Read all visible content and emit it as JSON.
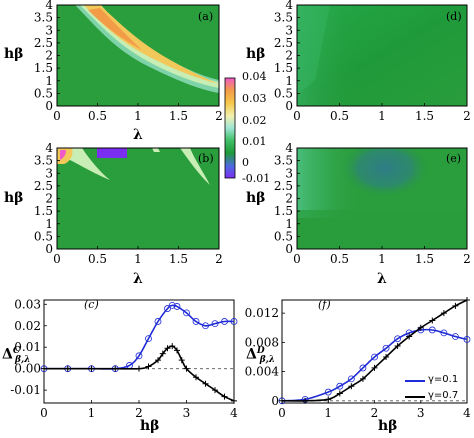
{
  "colorbar": {
    "ticks": [
      "0.04",
      "0.03",
      "0.02",
      "0.01",
      "0",
      "-0.01"
    ],
    "values": [
      0.04,
      0.03,
      0.02,
      0.01,
      0,
      -0.01
    ],
    "range": [
      -0.015,
      0.045
    ]
  },
  "colors": {
    "heatmap_green": "#2a9d3c",
    "line_blue": "#1f2bd6",
    "line_black": "#000000"
  },
  "chart_data": [
    {
      "type": "heatmap",
      "panel": "(a)",
      "xlabel": "λ",
      "ylabel": "hβ",
      "xlim": [
        0,
        2
      ],
      "ylim": [
        0,
        4
      ],
      "xticks": [
        "0",
        "0.5",
        "1",
        "1.5",
        "2"
      ],
      "yticks": [
        "0",
        "0.5",
        "1",
        "1.5",
        "2",
        "2.5",
        "3",
        "3.5",
        "4"
      ]
    },
    {
      "type": "heatmap",
      "panel": "(d)",
      "xlabel": "",
      "ylabel": "hβ",
      "xlim": [
        0,
        2
      ],
      "ylim": [
        0,
        4
      ],
      "xticks": [
        "0",
        "0.5",
        "1",
        "1.5",
        "2"
      ],
      "yticks": [
        "0",
        "0.5",
        "1",
        "1.5",
        "2",
        "2.5",
        "3",
        "3.5",
        "4"
      ]
    },
    {
      "type": "heatmap",
      "panel": "(b)",
      "xlabel": "λ",
      "ylabel": "hβ",
      "xlim": [
        0,
        2
      ],
      "ylim": [
        0,
        4
      ],
      "xticks": [
        "0",
        "0.5",
        "1",
        "1.5",
        "2"
      ],
      "yticks": [
        "0",
        "0.5",
        "1",
        "1.5",
        "2",
        "2.5",
        "3",
        "3.5",
        "4"
      ]
    },
    {
      "type": "heatmap",
      "panel": "(e)",
      "xlabel": "λ",
      "ylabel": "hβ",
      "xlim": [
        0,
        2
      ],
      "ylim": [
        0,
        4
      ],
      "xticks": [
        "0",
        "0.5",
        "1",
        "1.5",
        "2"
      ],
      "yticks": [
        "0",
        "0.5",
        "1",
        "1.5",
        "2",
        "2.5",
        "3",
        "3.5",
        "4"
      ]
    },
    {
      "type": "line",
      "panel": "(c)",
      "xlabel": "hβ",
      "ylabel": "Δ^C_{β,λ}",
      "xlim": [
        0,
        4
      ],
      "ylim": [
        -0.016,
        0.032
      ],
      "xticks": [
        "0",
        "1",
        "2",
        "3",
        "4"
      ],
      "yticks": [
        "0.03",
        "0.02",
        "0.01",
        "0.00",
        "-0.01"
      ],
      "series": [
        {
          "x": [
            0,
            0.5,
            1,
            1.5,
            1.8,
            2.0,
            2.2,
            2.4,
            2.6,
            2.7,
            2.8,
            3.0,
            3.2,
            3.4,
            3.6,
            3.8,
            4.0
          ],
          "y": [
            0,
            0,
            0,
            0,
            0.0015,
            0.006,
            0.014,
            0.022,
            0.028,
            0.0295,
            0.029,
            0.026,
            0.022,
            0.02,
            0.021,
            0.022,
            0.022
          ]
        },
        {
          "x": [
            0,
            0.5,
            1,
            1.5,
            2.0,
            2.2,
            2.4,
            2.5,
            2.6,
            2.7,
            2.8,
            2.9,
            3.0,
            3.2,
            3.4,
            3.6,
            3.8,
            4.0
          ],
          "y": [
            0,
            0,
            0,
            0,
            0,
            0.001,
            0.004,
            0.007,
            0.0095,
            0.0105,
            0.0085,
            0.004,
            0.0,
            -0.004,
            -0.007,
            -0.01,
            -0.013,
            -0.015
          ]
        }
      ]
    },
    {
      "type": "line",
      "panel": "(f)",
      "xlabel": "hβ",
      "ylabel": "Δ^D_{β,λ}",
      "xlim": [
        0,
        4
      ],
      "ylim": [
        -0.0003,
        0.0138
      ],
      "xticks": [
        "0",
        "1",
        "2",
        "3",
        "4"
      ],
      "yticks": [
        "0.012",
        "0.008",
        "0.004",
        "0"
      ],
      "legend": {
        "position": "bottom-right",
        "entries": [
          "γ=0.1",
          "γ=0.7"
        ]
      },
      "series": [
        {
          "name": "γ=0.1",
          "x": [
            0,
            0.5,
            1.0,
            1.25,
            1.5,
            1.75,
            2.0,
            2.25,
            2.5,
            2.75,
            3.0,
            3.25,
            3.5,
            3.75,
            4.0
          ],
          "y": [
            0,
            0.0002,
            0.0012,
            0.002,
            0.003,
            0.0045,
            0.006,
            0.0072,
            0.0085,
            0.0093,
            0.0097,
            0.0097,
            0.0093,
            0.0088,
            0.0084
          ]
        },
        {
          "name": "γ=0.7",
          "x": [
            0,
            0.5,
            1.0,
            1.25,
            1.5,
            1.75,
            2.0,
            2.25,
            2.5,
            2.75,
            3.0,
            3.25,
            3.5,
            3.75,
            4.0
          ],
          "y": [
            0,
            0,
            0.0002,
            0.001,
            0.002,
            0.003,
            0.0045,
            0.006,
            0.0075,
            0.0088,
            0.01,
            0.011,
            0.012,
            0.013,
            0.0138
          ]
        }
      ]
    }
  ]
}
